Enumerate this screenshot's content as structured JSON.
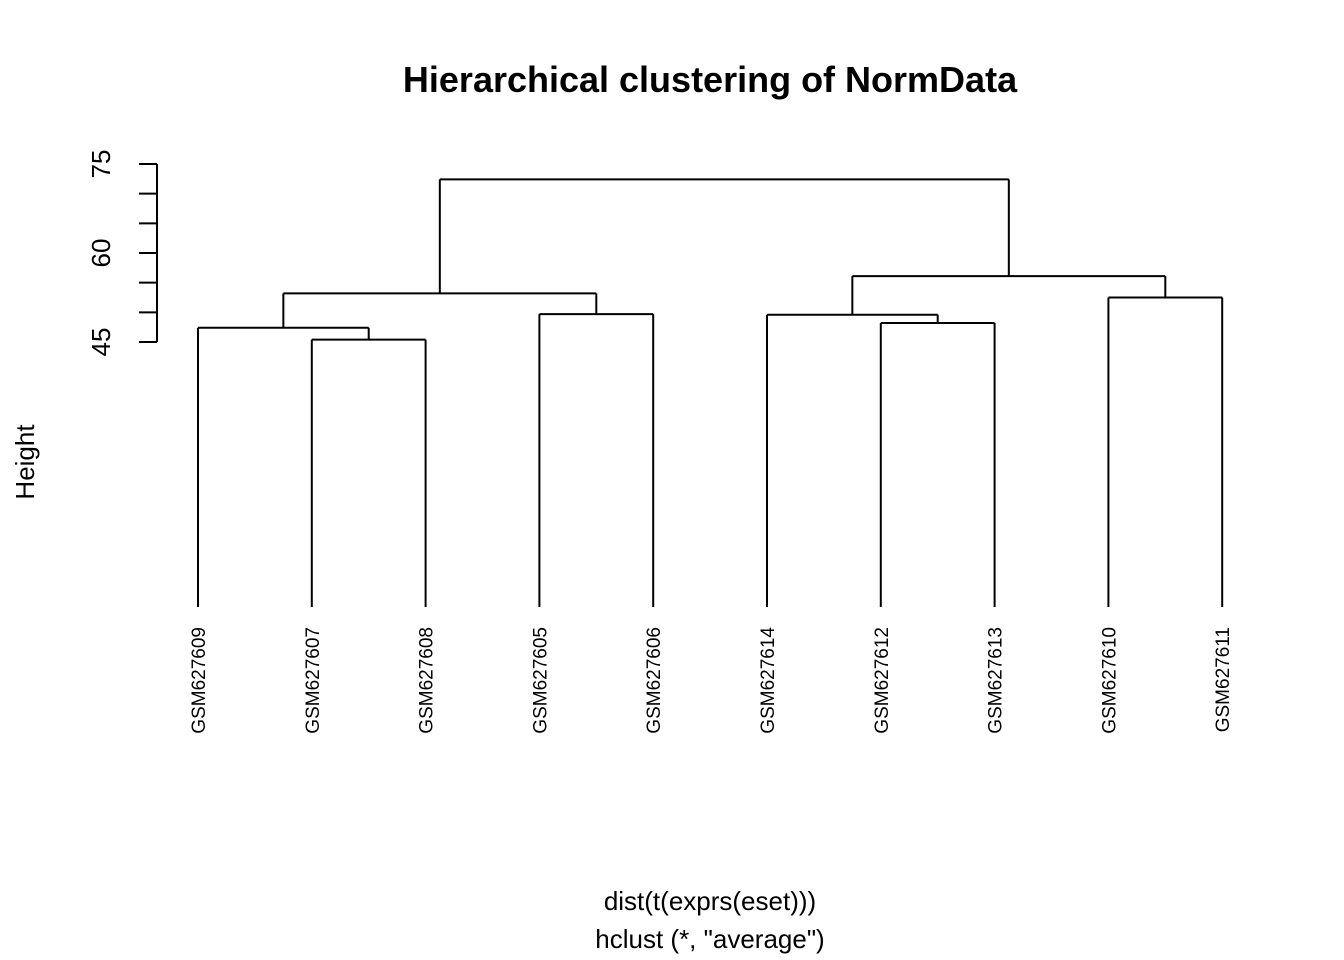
{
  "chart_data": {
    "type": "dendrogram",
    "title": "Hierarchical clustering of NormData",
    "ylabel": "Height",
    "xlabel": "dist(t(exprs(eset)))",
    "sublabel": "hclust (*, \"average\")",
    "yticks": [
      45,
      50,
      55,
      60,
      65,
      70,
      75
    ],
    "ytick_labels": [
      "45",
      "",
      "",
      "60",
      "",
      "",
      "75"
    ],
    "leaf_labels": [
      "GSM627609",
      "GSM627607",
      "GSM627608",
      "GSM627605",
      "GSM627606",
      "GSM627614",
      "GSM627612",
      "GSM627613",
      "GSM627610",
      "GSM627611"
    ],
    "merges": [
      {
        "children": [
          "GSM627607",
          "GSM627608"
        ],
        "height": 45.4
      },
      {
        "children": [
          "GSM627612",
          "GSM627613"
        ],
        "height": 48.2
      },
      {
        "children": [
          "GSM627609",
          "GSM627607+GSM627608"
        ],
        "height": 47.4
      },
      {
        "children": [
          "GSM627605",
          "GSM627606"
        ],
        "height": 49.7
      },
      {
        "children": [
          "GSM627614",
          "GSM627612+GSM627613"
        ],
        "height": 49.6
      },
      {
        "children": [
          "GSM627610",
          "GSM627611"
        ],
        "height": 52.5
      },
      {
        "children": [
          "GSM627609+GSM627607+GSM627608",
          "GSM627605+GSM627606"
        ],
        "height": 53.2
      },
      {
        "children": [
          "GSM627614+GSM627612+GSM627613",
          "GSM627610+GSM627611"
        ],
        "height": 56.1
      },
      {
        "children": [
          "left-cluster",
          "right-cluster"
        ],
        "height": 72.4
      }
    ]
  }
}
